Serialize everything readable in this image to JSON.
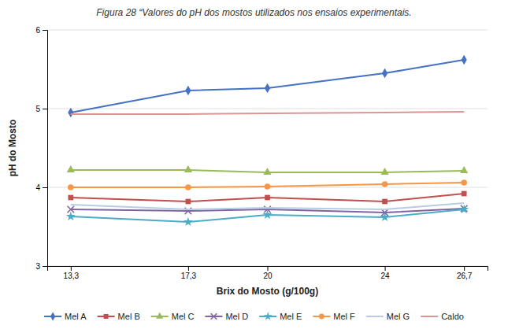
{
  "chart_data": {
    "type": "line",
    "title": "Figura 28  “Valores do pH dos mostos utilizados nos ensaios experimentais.",
    "xlabel": "Brix do Mosto (g/100g)",
    "ylabel": "pH do Mosto",
    "x": [
      13.3,
      17.3,
      20,
      24,
      26.7
    ],
    "xlim": [
      12.5,
      27.5
    ],
    "xticks": [
      {
        "value": 13.3,
        "label": "13,3"
      },
      {
        "value": 17.3,
        "label": "17,3"
      },
      20,
      24,
      {
        "value": 26.7,
        "label": "26,7"
      }
    ],
    "ylim": [
      3.0,
      6.0
    ],
    "yticks": [
      3,
      4,
      5,
      6
    ],
    "grid": true,
    "legend": "bottom",
    "series": [
      {
        "name": "Mel A",
        "color": "#4472C4",
        "marker": "diamond",
        "values": [
          4.95,
          5.23,
          5.26,
          5.45,
          5.62
        ]
      },
      {
        "name": "Mel B",
        "color": "#C0504D",
        "marker": "square",
        "values": [
          3.87,
          3.82,
          3.87,
          3.82,
          3.92
        ]
      },
      {
        "name": "Mel C",
        "color": "#9BBB59",
        "marker": "triangle",
        "values": [
          4.22,
          4.22,
          4.19,
          4.19,
          4.21
        ]
      },
      {
        "name": "Mel D",
        "color": "#8064A2",
        "marker": "x",
        "values": [
          3.72,
          3.7,
          3.72,
          3.68,
          3.73
        ]
      },
      {
        "name": "Mel E",
        "color": "#4BACC6",
        "marker": "star",
        "values": [
          3.63,
          3.56,
          3.65,
          3.62,
          3.72
        ]
      },
      {
        "name": "Mel F",
        "color": "#F79646",
        "marker": "circle",
        "values": [
          4.0,
          4.0,
          4.01,
          4.04,
          4.06
        ]
      },
      {
        "name": "Mel G",
        "color": "#B8CCE4",
        "marker": "none",
        "values": [
          3.78,
          3.72,
          3.74,
          3.72,
          3.8
        ]
      },
      {
        "name": "Caldo",
        "color": "#D99694",
        "marker": "none",
        "values": [
          4.93,
          4.93,
          4.94,
          4.95,
          4.96
        ]
      }
    ]
  }
}
